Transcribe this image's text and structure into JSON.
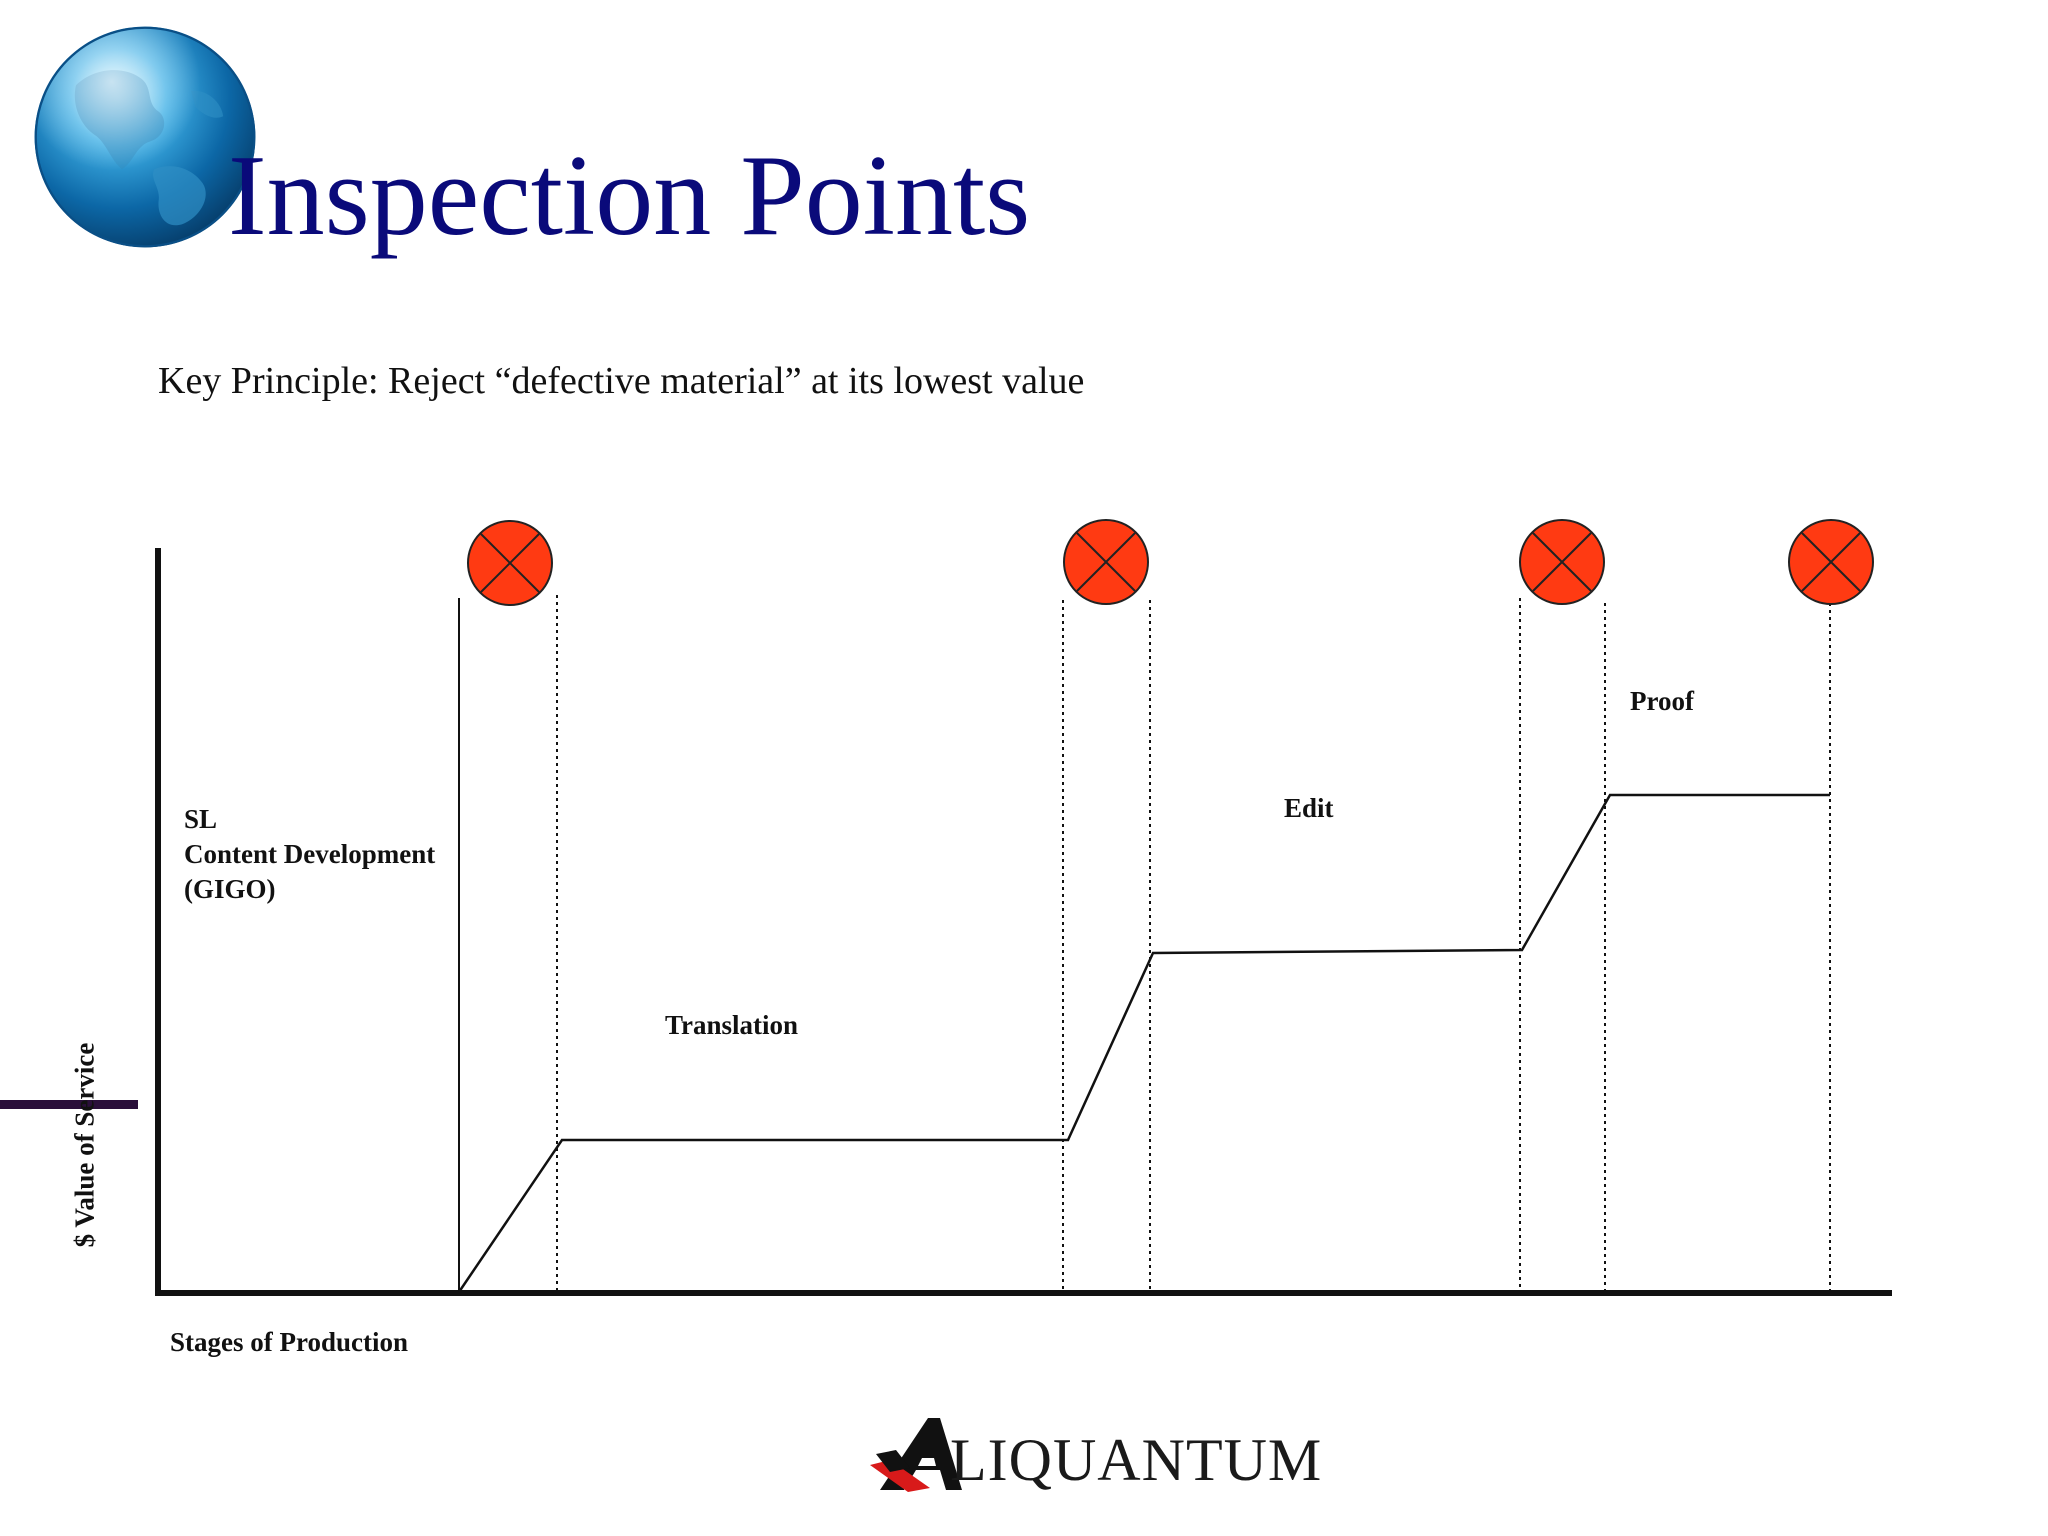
{
  "slide": {
    "title": "Inspection Points",
    "subtitle": "Key Principle: Reject “defective material” at its lowest value",
    "logo_text": "LIQUANTUM",
    "globe_icon": "globe-icon",
    "colors": {
      "title": "#0a0a7a",
      "inspection_marker": "#ff3a12",
      "accent_bar": "#2a0f3a",
      "logo_red": "#d81a1a"
    }
  },
  "diagram": {
    "x_axis_label": "Stages of Production",
    "y_axis_label": "$ Value of Service",
    "stages": [
      {
        "id": "content",
        "lines": [
          "SL",
          "Content Development",
          "(GIGO)"
        ]
      },
      {
        "id": "translation",
        "lines": [
          "Translation"
        ]
      },
      {
        "id": "edit",
        "lines": [
          "Edit"
        ]
      },
      {
        "id": "proof",
        "lines": [
          "Proof"
        ]
      }
    ],
    "inspection_points_count": 4,
    "marker_icon": "reject-x-circle-icon"
  }
}
